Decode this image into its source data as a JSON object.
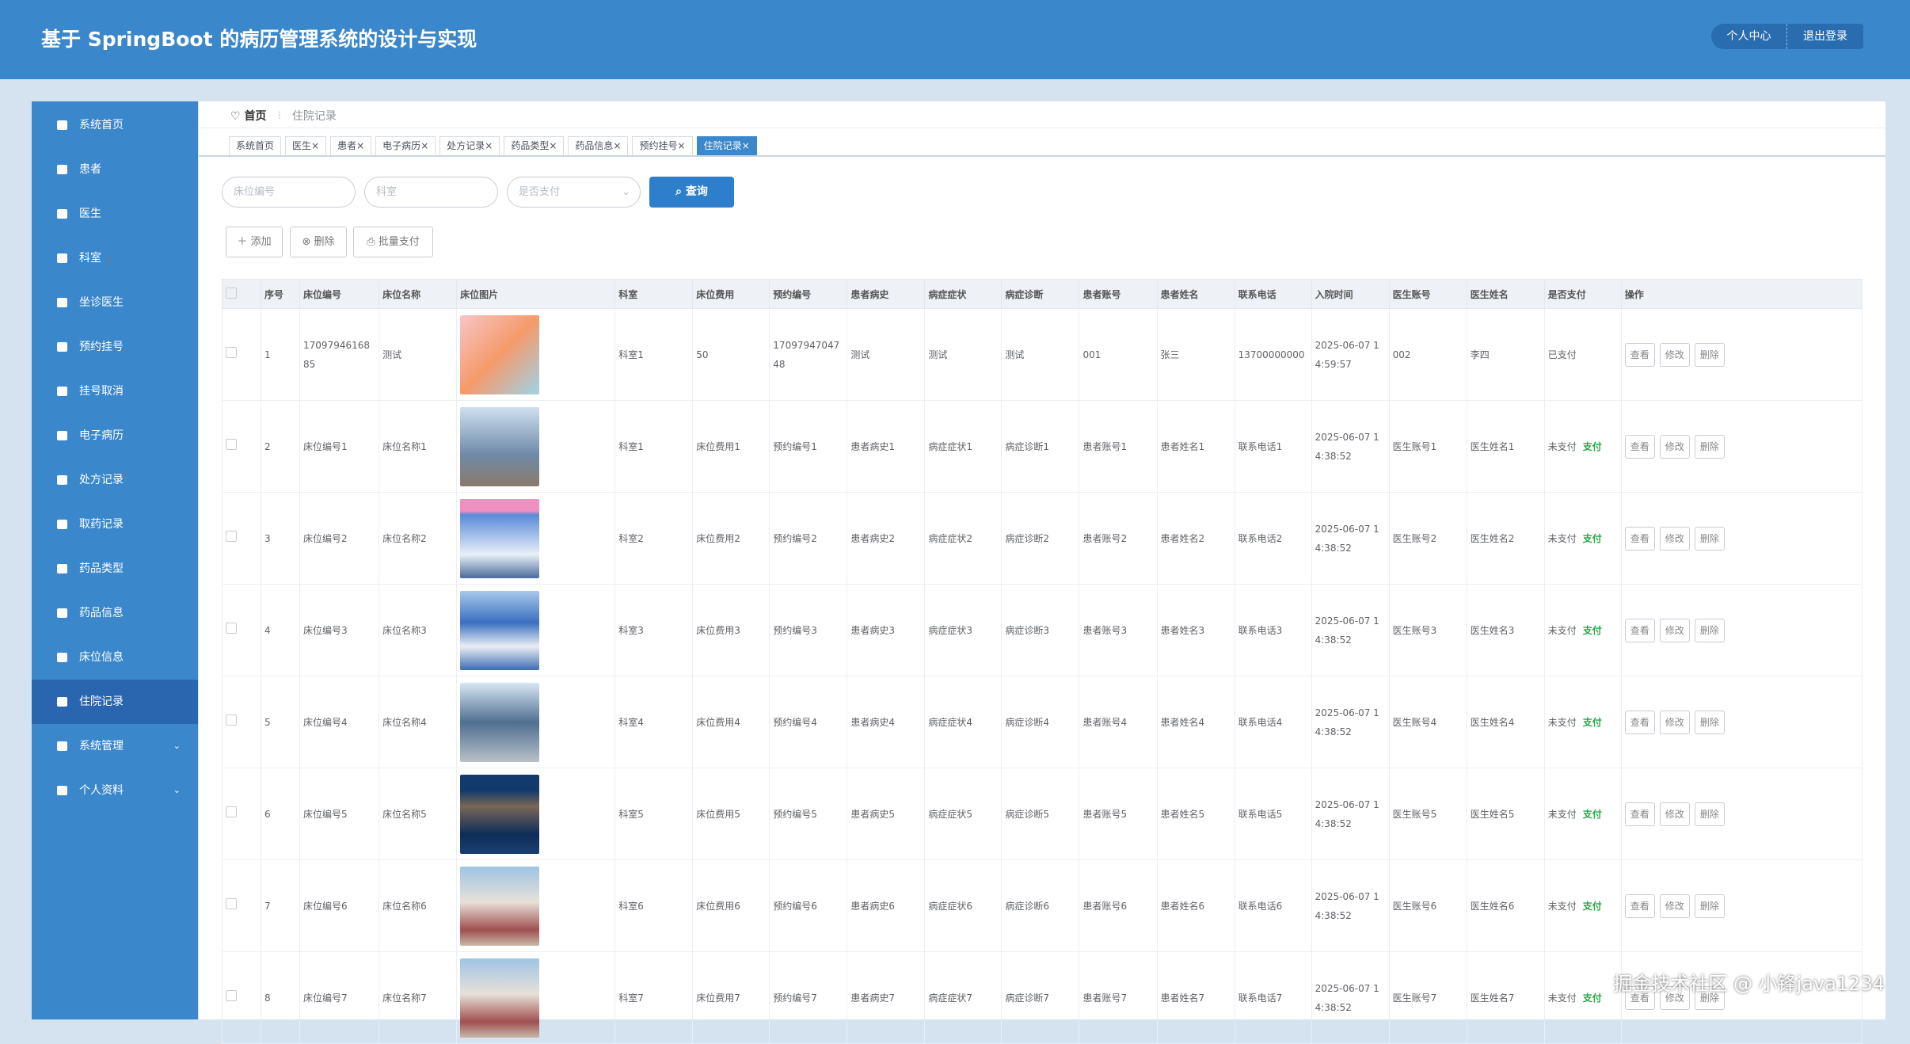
{
  "header": {
    "title": "基于 SpringBoot 的病历管理系统的设计与实现",
    "buttons": [
      "个人中心",
      "退出登录"
    ]
  },
  "sidebar": {
    "items": [
      "系统首页",
      "患者",
      "医生",
      "科室",
      "坐诊医生",
      "预约挂号",
      "挂号取消",
      "电子病历",
      "处方记录",
      "取药记录",
      "药品类型",
      "药品信息",
      "床位信息",
      "住院记录",
      "系统管理",
      "个人资料"
    ],
    "active": 13,
    "expandable": [
      14,
      15
    ]
  },
  "breadcrumb": [
    "首页",
    "住院记录"
  ],
  "tabs": {
    "items": [
      "系统首页",
      "医生",
      "患者",
      "电子病历",
      "处方记录",
      "药品类型",
      "药品信息",
      "预约挂号",
      "住院记录"
    ],
    "active": 8
  },
  "search": {
    "placeholders": [
      "床位编号",
      "科室",
      "是否支付"
    ],
    "button": "查询"
  },
  "actions": [
    "添加",
    "删除",
    "批量支付"
  ],
  "table": {
    "headers": [
      "序号",
      "床位编号",
      "床位名称",
      "床位图片",
      "科室",
      "床位费用",
      "预约编号",
      "患者病史",
      "病症症状",
      "病症诊断",
      "患者账号",
      "患者姓名",
      "联系电话",
      "入院时间",
      "医生账号",
      "医生姓名",
      "是否支付",
      "操作"
    ],
    "row_actions": [
      "查看",
      "修改",
      "删除"
    ],
    "rows": [
      {
        "cells": [
          "1",
          "1709794616885",
          "测试",
          "科室1",
          "50",
          "1709794704748",
          "测试",
          "测试",
          "测试",
          "001",
          "张三",
          "13700000000",
          "2025-06-07 14:59:57",
          "002",
          "李四",
          "已支付"
        ]
      },
      {
        "cells": [
          "2",
          "床位编号1",
          "床位名称1",
          "科室1",
          "床位费用1",
          "预约编号1",
          "患者病史1",
          "病症症状1",
          "病症诊断1",
          "患者账号1",
          "患者姓名1",
          "联系电话1",
          "2025-06-07 14:38:52",
          "医生账号1",
          "医生姓名1",
          "未支付"
        ],
        "pay_link": "支付"
      },
      {
        "cells": [
          "3",
          "床位编号2",
          "床位名称2",
          "科室2",
          "床位费用2",
          "预约编号2",
          "患者病史2",
          "病症症状2",
          "病症诊断2",
          "患者账号2",
          "患者姓名2",
          "联系电话2",
          "2025-06-07 14:38:52",
          "医生账号2",
          "医生姓名2",
          "未支付"
        ],
        "pay_link": "支付"
      },
      {
        "cells": [
          "4",
          "床位编号3",
          "床位名称3",
          "科室3",
          "床位费用3",
          "预约编号3",
          "患者病史3",
          "病症症状3",
          "病症诊断3",
          "患者账号3",
          "患者姓名3",
          "联系电话3",
          "2025-06-07 14:38:52",
          "医生账号3",
          "医生姓名3",
          "未支付"
        ],
        "pay_link": "支付"
      },
      {
        "cells": [
          "5",
          "床位编号4",
          "床位名称4",
          "科室4",
          "床位费用4",
          "预约编号4",
          "患者病史4",
          "病症症状4",
          "病症诊断4",
          "患者账号4",
          "患者姓名4",
          "联系电话4",
          "2025-06-07 14:38:52",
          "医生账号4",
          "医生姓名4",
          "未支付"
        ],
        "pay_link": "支付"
      },
      {
        "cells": [
          "6",
          "床位编号5",
          "床位名称5",
          "科室5",
          "床位费用5",
          "预约编号5",
          "患者病史5",
          "病症症状5",
          "病症诊断5",
          "患者账号5",
          "患者姓名5",
          "联系电话5",
          "2025-06-07 14:38:52",
          "医生账号5",
          "医生姓名5",
          "未支付"
        ],
        "pay_link": "支付"
      },
      {
        "cells": [
          "7",
          "床位编号6",
          "床位名称6",
          "科室6",
          "床位费用6",
          "预约编号6",
          "患者病史6",
          "病症症状6",
          "病症诊断6",
          "患者账号6",
          "患者姓名6",
          "联系电话6",
          "2025-06-07 14:38:52",
          "医生账号6",
          "医生姓名6",
          "未支付"
        ],
        "pay_link": "支付"
      },
      {
        "cells": [
          "8",
          "床位编号7",
          "床位名称7",
          "科室7",
          "床位费用7",
          "预约编号7",
          "患者病史7",
          "病症症状7",
          "病症诊断7",
          "患者账号7",
          "患者姓名7",
          "联系电话7",
          "2025-06-07 14:38:52",
          "医生账号7",
          "医生姓名7",
          "未支付"
        ],
        "pay_link": "支付"
      }
    ]
  },
  "watermark": "掘金技术社区 @ 小锋java1234"
}
